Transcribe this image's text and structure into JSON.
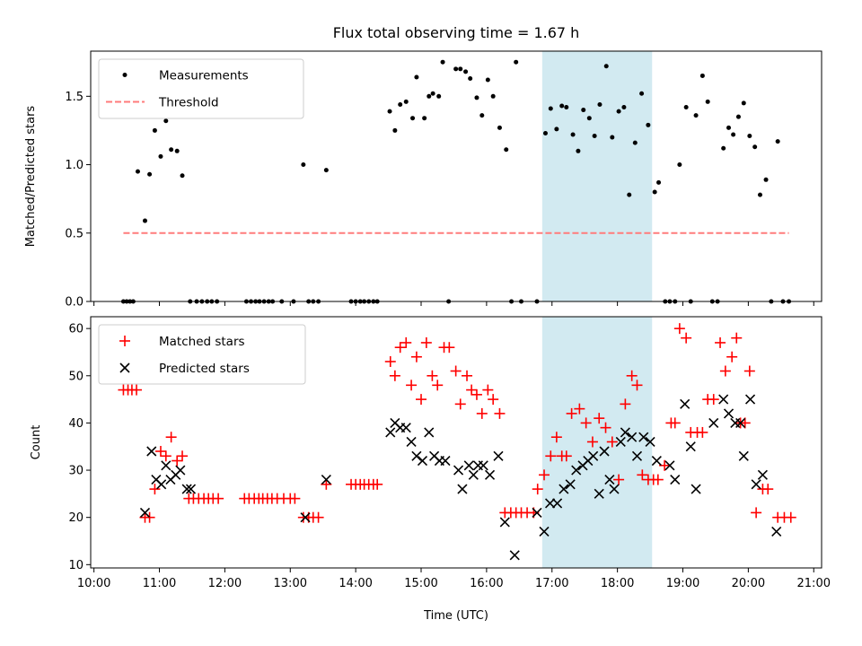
{
  "chart_data": {
    "title": "Flux total observing time = 1.67 h",
    "xlabel": "Time (UTC)",
    "x_tick_labels": [
      "10:00",
      "11:00",
      "12:00",
      "13:00",
      "14:00",
      "15:00",
      "16:00",
      "17:00",
      "18:00",
      "19:00",
      "20:00",
      "21:00"
    ],
    "xlim": [
      9.95,
      21.12
    ],
    "shaded_interval": {
      "start": 16.85,
      "end": 18.53,
      "color": "#add8e6"
    },
    "panels": [
      {
        "type": "scatter",
        "ylabel": "Matched/Predicted stars",
        "ylim": [
          0,
          1.83
        ],
        "y_ticks": [
          0.0,
          0.5,
          1.0,
          1.5
        ],
        "y_tick_labels": [
          "0.0",
          "0.5",
          "1.0",
          "1.5"
        ],
        "legend": {
          "position": "upper-left"
        },
        "series": [
          {
            "name": "Measurements",
            "marker": "dot",
            "color": "#000000",
            "x": [
              10.45,
              10.5,
              10.55,
              10.6,
              10.67,
              10.78,
              10.85,
              10.93,
              11.02,
              11.1,
              11.18,
              11.27,
              11.35,
              11.47,
              11.57,
              11.65,
              11.73,
              11.8,
              11.88,
              12.33,
              12.4,
              12.47,
              12.53,
              12.6,
              12.67,
              12.73,
              12.87,
              13.05,
              13.2,
              13.28,
              13.35,
              13.43,
              13.55,
              13.93,
              14.0,
              14.07,
              14.13,
              14.2,
              14.27,
              14.33,
              14.52,
              14.6,
              14.68,
              14.77,
              14.87,
              14.93,
              15.05,
              15.12,
              15.18,
              15.27,
              15.33,
              15.42,
              15.53,
              15.6,
              15.68,
              15.75,
              15.85,
              15.93,
              16.02,
              16.1,
              16.2,
              16.3,
              16.38,
              16.45,
              16.53,
              16.77,
              16.9,
              16.98,
              17.07,
              17.15,
              17.22,
              17.32,
              17.4,
              17.48,
              17.57,
              17.65,
              17.73,
              17.83,
              17.92,
              18.02,
              18.1,
              18.18,
              18.27,
              18.37,
              18.47,
              18.57,
              18.63,
              18.73,
              18.8,
              18.88,
              18.95,
              19.05,
              19.12,
              19.2,
              19.3,
              19.38,
              19.45,
              19.53,
              19.62,
              19.7,
              19.77,
              19.85,
              19.93,
              20.02,
              20.1,
              20.18,
              20.27,
              20.35,
              20.45,
              20.53,
              20.62
            ],
            "y": [
              0,
              0,
              0,
              0,
              0.95,
              0.59,
              0.93,
              1.25,
              1.06,
              1.32,
              1.11,
              1.1,
              0.92,
              0,
              0,
              0,
              0,
              0,
              0,
              0,
              0,
              0,
              0,
              0,
              0,
              0,
              0,
              0,
              1.0,
              0,
              0,
              0,
              0.96,
              0,
              0,
              0,
              0,
              0,
              0,
              0,
              1.39,
              1.25,
              1.44,
              1.46,
              1.34,
              1.64,
              1.34,
              1.5,
              1.52,
              1.5,
              1.75,
              0,
              1.7,
              1.7,
              1.68,
              1.63,
              1.49,
              1.36,
              1.62,
              1.5,
              1.27,
              1.11,
              0,
              1.75,
              0,
              0,
              1.23,
              1.41,
              1.26,
              1.43,
              1.42,
              1.22,
              1.1,
              1.4,
              1.34,
              1.21,
              1.44,
              1.72,
              1.2,
              1.39,
              1.42,
              0.78,
              1.16,
              1.52,
              1.29,
              0.8,
              0.87,
              0,
              0,
              0,
              1.0,
              1.42,
              0,
              1.36,
              1.65,
              1.46,
              0,
              0,
              1.12,
              1.27,
              1.22,
              1.35,
              1.45,
              1.21,
              1.13,
              0.78,
              0.89,
              0,
              1.17,
              0,
              0
            ]
          },
          {
            "name": "Threshold",
            "marker": "dashed-line",
            "color": "#ff7b7b",
            "x": [
              10.45,
              20.62
            ],
            "y": [
              0.5,
              0.5
            ]
          }
        ]
      },
      {
        "type": "scatter",
        "ylabel": "Count",
        "ylim": [
          9.3,
          62.5
        ],
        "y_ticks": [
          10,
          20,
          30,
          40,
          50,
          60
        ],
        "y_tick_labels": [
          "10",
          "20",
          "30",
          "40",
          "50",
          "60"
        ],
        "legend": {
          "position": "upper-left"
        },
        "series": [
          {
            "name": "Matched stars",
            "marker": "plus",
            "color": "#ff0000",
            "x": [
              10.45,
              10.52,
              10.58,
              10.65,
              10.78,
              10.85,
              10.93,
              11.02,
              11.1,
              11.18,
              11.27,
              11.35,
              11.45,
              11.52,
              11.6,
              11.68,
              11.75,
              11.82,
              11.9,
              12.3,
              12.37,
              12.45,
              12.52,
              12.58,
              12.65,
              12.72,
              12.8,
              12.9,
              13.0,
              13.07,
              13.2,
              13.28,
              13.35,
              13.43,
              13.55,
              13.93,
              14.0,
              14.07,
              14.13,
              14.2,
              14.27,
              14.33,
              14.53,
              14.6,
              14.68,
              14.77,
              14.85,
              14.93,
              15.0,
              15.08,
              15.17,
              15.25,
              15.35,
              15.43,
              15.53,
              15.6,
              15.7,
              15.77,
              15.85,
              15.93,
              16.02,
              16.1,
              16.2,
              16.28,
              16.37,
              16.45,
              16.53,
              16.62,
              16.72,
              16.78,
              16.88,
              16.98,
              17.07,
              17.15,
              17.22,
              17.3,
              17.42,
              17.52,
              17.62,
              17.72,
              17.82,
              17.92,
              18.02,
              18.12,
              18.22,
              18.3,
              18.38,
              18.47,
              18.55,
              18.62,
              18.72,
              18.82,
              18.88,
              18.95,
              19.05,
              19.12,
              19.22,
              19.3,
              19.38,
              19.47,
              19.57,
              19.65,
              19.75,
              19.82,
              19.88,
              19.95,
              20.02,
              20.12,
              20.22,
              20.3,
              20.45,
              20.55,
              20.65
            ],
            "y": [
              47,
              47,
              47,
              47,
              20,
              20,
              26,
              34,
              33,
              37,
              32,
              33,
              24,
              24,
              24,
              24,
              24,
              24,
              24,
              24,
              24,
              24,
              24,
              24,
              24,
              24,
              24,
              24,
              24,
              24,
              20,
              20,
              20,
              20,
              27,
              27,
              27,
              27,
              27,
              27,
              27,
              27,
              53,
              50,
              56,
              57,
              48,
              54,
              45,
              57,
              50,
              48,
              56,
              56,
              51,
              44,
              50,
              47,
              46,
              42,
              47,
              45,
              42,
              21,
              21,
              21,
              21,
              21,
              21,
              26,
              29,
              33,
              37,
              33,
              33,
              42,
              43,
              40,
              36,
              41,
              39,
              36,
              28,
              44,
              50,
              48,
              29,
              28,
              28,
              28,
              31,
              40,
              40,
              60,
              58,
              38,
              38,
              38,
              45,
              45,
              57,
              51,
              54,
              58,
              40,
              40,
              51,
              21,
              26,
              26,
              20,
              20,
              20
            ]
          },
          {
            "name": "Predicted stars",
            "marker": "x",
            "color": "#000000",
            "x": [
              10.78,
              10.88,
              10.95,
              11.03,
              11.1,
              11.17,
              11.25,
              11.32,
              11.42,
              11.48,
              13.23,
              13.55,
              14.53,
              14.6,
              14.68,
              14.77,
              14.85,
              14.93,
              15.02,
              15.12,
              15.2,
              15.28,
              15.37,
              15.57,
              15.63,
              15.73,
              15.8,
              15.87,
              15.95,
              16.05,
              16.18,
              16.28,
              16.43,
              16.77,
              16.88,
              16.97,
              17.08,
              17.18,
              17.28,
              17.37,
              17.47,
              17.55,
              17.63,
              17.72,
              17.8,
              17.88,
              17.95,
              18.05,
              18.12,
              18.22,
              18.3,
              18.4,
              18.5,
              18.6,
              18.8,
              18.88,
              19.03,
              19.12,
              19.2,
              19.47,
              19.62,
              19.7,
              19.8,
              19.88,
              19.93,
              20.03,
              20.12,
              20.22,
              20.43
            ],
            "y": [
              21,
              34,
              28,
              27,
              31,
              28,
              29,
              30,
              26,
              26,
              20,
              28,
              38,
              40,
              39,
              39,
              36,
              33,
              32,
              38,
              33,
              32,
              32,
              30,
              26,
              31,
              29,
              31,
              31,
              29,
              33,
              19,
              12,
              21,
              17,
              23,
              23,
              26,
              27,
              30,
              31,
              32,
              33,
              25,
              34,
              28,
              26,
              36,
              38,
              37,
              33,
              37,
              36,
              32,
              31,
              28,
              44,
              35,
              26,
              40,
              45,
              42,
              40,
              40,
              33,
              45,
              27,
              29,
              17
            ]
          }
        ]
      }
    ]
  }
}
